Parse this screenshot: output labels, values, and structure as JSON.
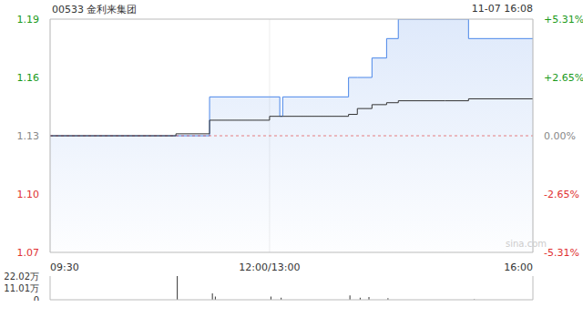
{
  "chart_data": [
    {
      "type": "line",
      "title": "00533 金利来集团",
      "subtitle": "11-07 16:08",
      "watermark": "sina.com",
      "x": [
        0,
        86,
        109,
        150,
        157,
        159,
        204,
        210,
        220,
        230,
        238,
        270,
        286,
        330
      ],
      "xlim": [
        0,
        330
      ],
      "xticks": [
        {
          "value": 0,
          "label": "09:30"
        },
        {
          "value": 150,
          "label": "12:00/13:00"
        },
        {
          "value": 330,
          "label": "16:00"
        }
      ],
      "ylim": [
        1.07,
        1.19
      ],
      "yticks": [
        1.07,
        {
          "value": 1.1,
          "label": "1.10"
        },
        1.13,
        1.16,
        1.19
      ],
      "y2lim": [
        -5.31,
        5.31
      ],
      "y2ticks": [
        {
          "value": -5.31,
          "label": "-5.31%"
        },
        {
          "value": -2.65,
          "label": "-2.65%"
        },
        {
          "value": 0,
          "label": "0.00%"
        },
        {
          "value": 2.65,
          "label": "+2.65%"
        },
        {
          "value": 5.31,
          "label": "+5.31%"
        }
      ],
      "prev_close": 1.13,
      "grid": true,
      "series": [
        {
          "type": "area",
          "color": "#4a86e8",
          "values": [
            1.13,
            1.13,
            1.15,
            1.15,
            1.14,
            1.15,
            1.16,
            1.16,
            1.17,
            1.18,
            1.19,
            1.19,
            1.18,
            1.18
          ]
        },
        {
          "type": "line",
          "color": "#333333",
          "values": [
            1.13,
            1.131,
            1.138,
            1.14,
            1.14,
            1.14,
            1.141,
            1.144,
            1.146,
            1.147,
            1.148,
            1.148,
            1.149,
            1.149
          ]
        }
      ]
    },
    {
      "type": "bar",
      "x": [
        87,
        111,
        113,
        151,
        158,
        205,
        212,
        218,
        231,
        290
      ],
      "values": [
        22.02,
        6,
        3,
        3,
        2,
        4,
        2,
        2.5,
        1.5,
        0.5
      ],
      "color": "#333333",
      "xlim": [
        0,
        330
      ],
      "ylim": [
        0,
        22.02
      ],
      "yticks": [
        0,
        {
          "value": 11.01,
          "label": "11.01万"
        },
        {
          "value": 22.02,
          "label": "22.02万"
        }
      ],
      "tick_labels": "y"
    }
  ]
}
